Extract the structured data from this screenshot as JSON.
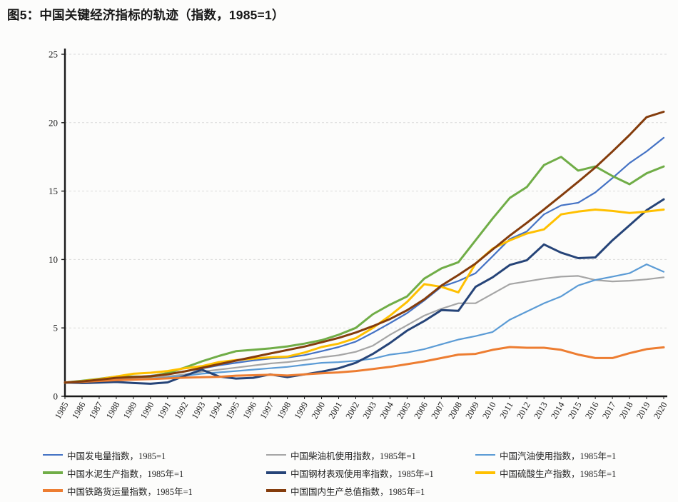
{
  "title": "图5：中国关键经济指标的轨迹（指数，1985=1）",
  "chart_data": {
    "type": "line",
    "title": "图5：中国关键经济指标的轨迹（指数，1985=1）",
    "xlabel": "",
    "ylabel": "",
    "ylim": [
      0,
      25
    ],
    "yticks": [
      0,
      5,
      10,
      15,
      20,
      25
    ],
    "grid": "horizontal, dashed, light-gray",
    "legend_position": "bottom",
    "grid_color": "#d9d9d9",
    "axis_color": "#1a1a1a",
    "x": [
      1985,
      1986,
      1987,
      1988,
      1989,
      1990,
      1991,
      1992,
      1993,
      1994,
      1995,
      1996,
      1997,
      1998,
      1999,
      2000,
      2001,
      2002,
      2003,
      2004,
      2005,
      2006,
      2007,
      2008,
      2009,
      2010,
      2011,
      2012,
      2013,
      2014,
      2015,
      2016,
      2017,
      2018,
      2019,
      2020
    ],
    "series": [
      {
        "key": "electricity",
        "name": "中国发电量指数，1985=1",
        "color": "#4472C4",
        "thin": true,
        "values": [
          1.0,
          1.09,
          1.2,
          1.32,
          1.41,
          1.51,
          1.66,
          1.82,
          2.03,
          2.26,
          2.45,
          2.62,
          2.76,
          2.83,
          3.01,
          3.3,
          3.6,
          4.0,
          4.65,
          5.35,
          6.08,
          7.0,
          8.0,
          8.43,
          9.0,
          10.24,
          11.5,
          12.05,
          13.3,
          13.95,
          14.15,
          14.9,
          15.95,
          17.05,
          17.9,
          18.9
        ]
      },
      {
        "key": "diesel",
        "name": "中国柴油机使用指数，1985年=1",
        "color": "#A5A5A5",
        "thin": true,
        "values": [
          1.0,
          1.08,
          1.17,
          1.28,
          1.3,
          1.35,
          1.45,
          1.6,
          1.8,
          1.95,
          2.1,
          2.25,
          2.4,
          2.5,
          2.65,
          2.85,
          3.0,
          3.25,
          3.7,
          4.5,
          5.2,
          5.9,
          6.4,
          6.8,
          6.8,
          7.5,
          8.2,
          8.4,
          8.6,
          8.75,
          8.8,
          8.5,
          8.4,
          8.45,
          8.55,
          8.7
        ]
      },
      {
        "key": "gasoline",
        "name": "中国汽油使用指数，1985年=1",
        "color": "#5B9BD5",
        "thin": true,
        "values": [
          1.0,
          1.05,
          1.1,
          1.2,
          1.22,
          1.28,
          1.38,
          1.5,
          1.65,
          1.75,
          1.85,
          1.95,
          2.05,
          2.15,
          2.3,
          2.45,
          2.5,
          2.6,
          2.75,
          3.05,
          3.2,
          3.45,
          3.8,
          4.15,
          4.4,
          4.7,
          5.6,
          6.2,
          6.8,
          7.3,
          8.1,
          8.5,
          8.75,
          9.0,
          9.65,
          9.1
        ]
      },
      {
        "key": "cement",
        "name": "中国水泥生产指数，1985年=1",
        "color": "#70AD47",
        "thin": false,
        "values": [
          1.0,
          1.14,
          1.28,
          1.44,
          1.44,
          1.44,
          1.7,
          2.1,
          2.55,
          2.95,
          3.3,
          3.4,
          3.5,
          3.65,
          3.85,
          4.1,
          4.5,
          5.0,
          6.0,
          6.7,
          7.3,
          8.6,
          9.35,
          9.8,
          11.4,
          13.0,
          14.5,
          15.3,
          16.9,
          17.5,
          16.5,
          16.8,
          16.1,
          15.5,
          16.3,
          16.8
        ]
      },
      {
        "key": "steel",
        "name": "中国钢材表观使用率指数，1985年=1",
        "color": "#264478",
        "thin": false,
        "values": [
          1.0,
          0.97,
          1.0,
          1.05,
          0.97,
          0.92,
          1.02,
          1.5,
          1.95,
          1.45,
          1.3,
          1.35,
          1.6,
          1.4,
          1.6,
          1.8,
          2.05,
          2.45,
          3.1,
          3.9,
          4.8,
          5.5,
          6.3,
          6.25,
          8.0,
          8.7,
          9.6,
          9.95,
          11.1,
          10.5,
          10.1,
          10.15,
          11.4,
          12.5,
          13.6,
          14.4
        ]
      },
      {
        "key": "sulfuric-acid",
        "name": "中国硫酸生产指数，1985年=1",
        "color": "#FFC000",
        "thin": false,
        "values": [
          1.0,
          1.1,
          1.25,
          1.45,
          1.65,
          1.72,
          1.85,
          2.05,
          2.2,
          2.5,
          2.65,
          2.75,
          2.85,
          2.9,
          3.2,
          3.6,
          3.85,
          4.25,
          5.0,
          5.9,
          6.9,
          8.2,
          8.0,
          7.6,
          9.7,
          10.8,
          11.4,
          11.9,
          12.2,
          13.3,
          13.5,
          13.65,
          13.55,
          13.4,
          13.5,
          13.65
        ]
      },
      {
        "key": "rail-freight",
        "name": "中国铁路货运量指数，1985年=1",
        "color": "#ED7D31",
        "thin": false,
        "values": [
          1.0,
          1.06,
          1.12,
          1.18,
          1.22,
          1.26,
          1.31,
          1.36,
          1.4,
          1.42,
          1.51,
          1.54,
          1.58,
          1.52,
          1.6,
          1.68,
          1.75,
          1.85,
          2.0,
          2.15,
          2.35,
          2.55,
          2.8,
          3.05,
          3.1,
          3.4,
          3.6,
          3.55,
          3.55,
          3.4,
          3.05,
          2.8,
          2.8,
          3.15,
          3.45,
          3.58
        ]
      },
      {
        "key": "gdp",
        "name": "中国国内生产总值指数，1985年=1",
        "color": "#843C0C",
        "thin": false,
        "values": [
          1.0,
          1.09,
          1.21,
          1.35,
          1.41,
          1.46,
          1.6,
          1.82,
          2.08,
          2.35,
          2.61,
          2.87,
          3.13,
          3.38,
          3.64,
          3.95,
          4.27,
          4.66,
          5.13,
          5.65,
          6.29,
          7.09,
          8.09,
          8.87,
          9.7,
          10.73,
          11.75,
          12.68,
          13.66,
          14.66,
          15.68,
          16.73,
          17.89,
          19.1,
          20.4,
          20.8
        ]
      }
    ]
  }
}
